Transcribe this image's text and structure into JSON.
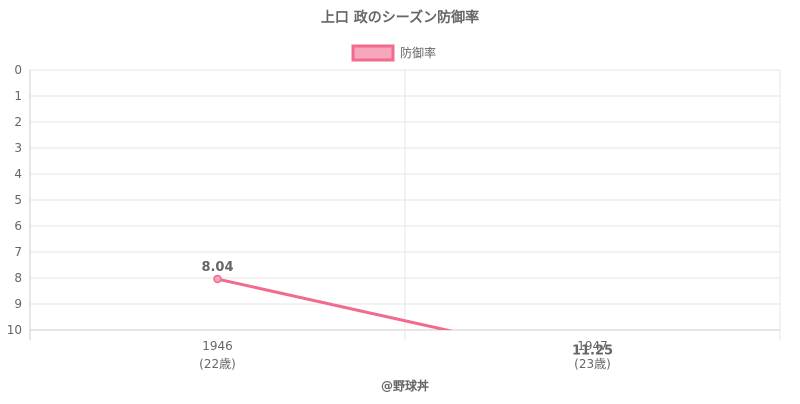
{
  "chart_data": {
    "type": "line",
    "title": "上口 政のシーズン防御率",
    "x": [
      "1946",
      "1947"
    ],
    "x_sublabels": [
      "(22歳)",
      "(23歳)"
    ],
    "series": [
      {
        "name": "防御率",
        "values": [
          8.04,
          11.25
        ],
        "value_labels": [
          "8.04",
          "11.25"
        ],
        "color": "#f06b8d",
        "fill": "#f7a6bb"
      }
    ],
    "ylim": [
      0,
      10
    ],
    "y_reversed": true,
    "y_ticks": [
      "0",
      "1",
      "2",
      "3",
      "4",
      "5",
      "6",
      "7",
      "8",
      "9",
      "10"
    ],
    "legend": "top-center",
    "grid": true,
    "credit": "@野球丼"
  }
}
